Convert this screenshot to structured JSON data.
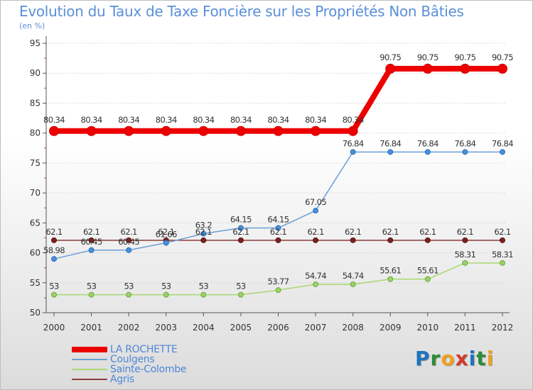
{
  "header": {
    "title": "Evolution du Taux de Taxe Foncière sur les Propriétés Non Bâties",
    "subtitle": "(en %)"
  },
  "logo": {
    "text": "Proxiti",
    "letters": [
      "P",
      "r",
      "o",
      "x",
      "i",
      "t",
      "i"
    ],
    "colors": [
      "#1e73be",
      "#2e8b3a",
      "#f0a020",
      "#d23a2a",
      "#1e73be",
      "#2e8b3a",
      "#f0a020"
    ]
  },
  "chart_data": {
    "type": "line",
    "title": "Evolution du Taux de Taxe Foncière sur les Propriétés Non Bâties",
    "ylabel": "(en %)",
    "x": [
      "2000",
      "2001",
      "2002",
      "2003",
      "2004",
      "2005",
      "2006",
      "2007",
      "2008",
      "2009",
      "2010",
      "2011",
      "2012"
    ],
    "ylim": [
      50,
      95
    ],
    "yticks": [
      50,
      55,
      60,
      65,
      70,
      75,
      80,
      85,
      90,
      95
    ],
    "grid": "horizontal dotted",
    "legend_position": "bottom-left",
    "series": [
      {
        "name": "LA ROCHETTE",
        "color": "#ee0000",
        "width": 8,
        "marker_fill": "#ee0000",
        "marker_stroke": "#cc0000",
        "values": [
          80.34,
          80.34,
          80.34,
          80.34,
          80.34,
          80.34,
          80.34,
          80.34,
          80.34,
          90.75,
          90.75,
          90.75,
          90.75
        ],
        "labels": [
          "80.34",
          "80.34",
          "80.34",
          "80.34",
          "80.34",
          "80.34",
          "80.34",
          "80.34",
          "80.34",
          "90.75",
          "90.75",
          "90.75",
          "90.75"
        ]
      },
      {
        "name": "Coulgens",
        "color": "#6a9fd4",
        "width": 1.5,
        "marker_fill": "#4a90d9",
        "marker_stroke": "#2d6fb8",
        "values": [
          58.98,
          60.45,
          60.45,
          61.66,
          63.2,
          64.15,
          64.15,
          67.05,
          76.84,
          76.84,
          76.84,
          76.84,
          76.84
        ],
        "labels": [
          "58.98",
          "60.45",
          "60.45",
          "61.66",
          "63.2",
          "64.15",
          "64.15",
          "67.05",
          "76.84",
          "76.84",
          "76.84",
          "76.84",
          "76.84"
        ]
      },
      {
        "name": "Sainte-Colombe",
        "color": "#a8d870",
        "width": 1.5,
        "marker_fill": "#9bd16a",
        "marker_stroke": "#6ea83a",
        "values": [
          53,
          53,
          53,
          53,
          53,
          53,
          53.77,
          54.74,
          54.74,
          55.61,
          55.61,
          58.31,
          58.31
        ],
        "labels": [
          "53",
          "53",
          "53",
          "53",
          "53",
          "53",
          "53.77",
          "54.74",
          "54.74",
          "55.61",
          "55.61",
          "58.31",
          "58.31"
        ]
      },
      {
        "name": "Agris",
        "color": "#8b3a3a",
        "width": 1.5,
        "marker_fill": "#7a2222",
        "marker_stroke": "#5a1414",
        "values": [
          62.1,
          62.1,
          62.1,
          62.1,
          62.1,
          62.1,
          62.1,
          62.1,
          62.1,
          62.1,
          62.1,
          62.1,
          62.1
        ],
        "labels": [
          "62.1",
          "62.1",
          "62.1",
          "62.1",
          "62.1",
          "62.1",
          "62.1",
          "62.1",
          "62.1",
          "62.1",
          "62.1",
          "62.1",
          "62.1"
        ]
      }
    ]
  }
}
